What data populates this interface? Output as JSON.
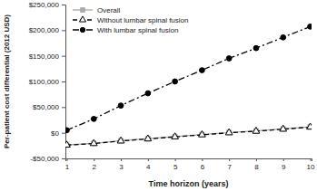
{
  "chart_data": {
    "type": "line",
    "x_label": "Time horizon (years)",
    "y_label": "Per-patient cost differential (2012 USD)",
    "x": [
      1,
      2,
      3,
      4,
      5,
      6,
      7,
      8,
      9,
      10
    ],
    "xlim": [
      0.95,
      10.05
    ],
    "xticks": [
      1,
      2,
      3,
      4,
      5,
      6,
      7,
      8,
      9,
      10
    ],
    "ylim": [
      -50000,
      250000
    ],
    "yticks": [
      {
        "value": -50000,
        "label": "-$50,000"
      },
      {
        "value": 0,
        "label": "$0"
      },
      {
        "value": 50000,
        "label": "$50,000"
      },
      {
        "value": 100000,
        "label": "$100,000"
      },
      {
        "value": 150000,
        "label": "$150,000"
      },
      {
        "value": 200000,
        "label": "$200,000"
      },
      {
        "value": 250000,
        "label": "$250,000"
      }
    ],
    "grid": false,
    "legend": "top-left",
    "series": [
      {
        "name": "Overall",
        "color": "#aaaaaa",
        "marker": "square",
        "line_style": "solid",
        "values": [
          -23500,
          -20500,
          -15500,
          -11500,
          -7500,
          -3500,
          500,
          3500,
          7500,
          11500
        ]
      },
      {
        "name": "Without lumbar spinal fusion",
        "color": "#000000",
        "marker": "triangle",
        "line_style": "dashed",
        "values": [
          -24000,
          -21000,
          -16000,
          -12000,
          -8000,
          -4000,
          0,
          3000,
          7000,
          11000
        ]
      },
      {
        "name": "With lumbar spinal fusion",
        "color": "#000000",
        "marker": "circle",
        "line_style": "dashdot",
        "values": [
          5000,
          27000,
          53000,
          77000,
          100000,
          122000,
          145000,
          165000,
          186000,
          207000
        ]
      }
    ]
  }
}
